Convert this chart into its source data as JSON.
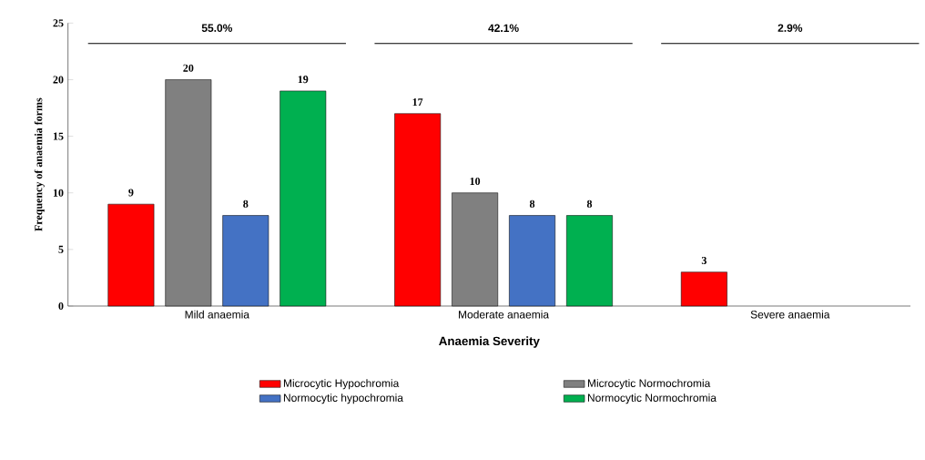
{
  "chart_data": {
    "type": "bar",
    "xlabel": "Anaemia  Severity",
    "ylabel": "Frequency of anaemia forms",
    "categories": [
      "Mild anaemia",
      "Moderate anaemia",
      "Severe anaemia"
    ],
    "series": [
      {
        "name": "Microcytic Hypochromia",
        "color": "#ff0000",
        "values": [
          9,
          17,
          3
        ]
      },
      {
        "name": "Microcytic Normochromia",
        "color": "#808080",
        "values": [
          20,
          10,
          null
        ]
      },
      {
        "name": "Normocytic hypochromia",
        "color": "#4472c4",
        "values": [
          8,
          8,
          null
        ]
      },
      {
        "name": "Normocytic Normochromia",
        "color": "#00b050",
        "values": [
          19,
          8,
          null
        ]
      }
    ],
    "ylim": [
      0,
      25
    ],
    "yticks": [
      0,
      5,
      10,
      15,
      20,
      25
    ],
    "grid": false,
    "legend": "bottom",
    "data_labels": true,
    "annotations": [
      "55.0%",
      "42.1%",
      "2.9%"
    ]
  }
}
